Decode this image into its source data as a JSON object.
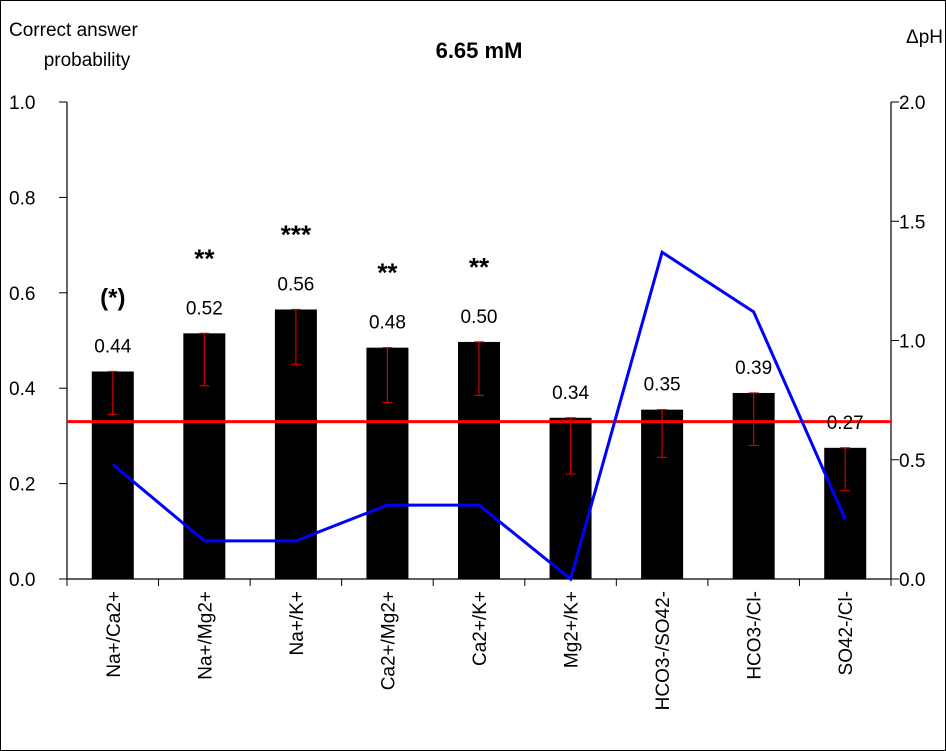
{
  "chart_data": {
    "type": "bar",
    "title": "6.65 mM",
    "ylabel": "Correct answer probability",
    "y2label": "ΔpH",
    "ylim": [
      0,
      1.0
    ],
    "y2lim": [
      0,
      2.0
    ],
    "yticks": [
      "0.0",
      "0.2",
      "0.4",
      "0.6",
      "0.8",
      "1.0"
    ],
    "y2ticks": [
      "0.0",
      "0.5",
      "1.0",
      "1.5",
      "2.0"
    ],
    "categories": [
      "Na+/Ca2+",
      "Na+/Mg2+",
      "Na+/K+",
      "Ca2+/Mg2+",
      "Ca2+/K+",
      "Mg2+/K+",
      "HCO3-/SO42-",
      "HCO3-/Cl-",
      "SO42-/Cl-"
    ],
    "series": [
      {
        "type": "bar",
        "axis": "left",
        "values": [
          0.435,
          0.515,
          0.565,
          0.485,
          0.497,
          0.338,
          0.355,
          0.39,
          0.275
        ],
        "error_low": [
          0.345,
          0.405,
          0.45,
          0.37,
          0.385,
          0.22,
          0.255,
          0.28,
          0.185
        ],
        "error_high": [
          0.435,
          0.515,
          0.565,
          0.485,
          0.497,
          0.338,
          0.355,
          0.39,
          0.275
        ],
        "labels": [
          "0.44",
          "0.52",
          "0.56",
          "0.48",
          "0.50",
          "0.34",
          "0.35",
          "0.39",
          "0.27"
        ],
        "significance": [
          "(*)",
          "**",
          "***",
          "**",
          "**",
          "",
          "",
          "",
          ""
        ]
      },
      {
        "type": "line",
        "axis": "right",
        "values": [
          0.48,
          0.16,
          0.16,
          0.31,
          0.31,
          0.0,
          1.37,
          1.12,
          0.25
        ]
      }
    ],
    "reference_line": {
      "axis": "left",
      "value": 0.33
    },
    "colors": {
      "bar": "#000000",
      "error": "#cc0000",
      "line": "#0000ff",
      "reference": "#ff0000"
    }
  }
}
